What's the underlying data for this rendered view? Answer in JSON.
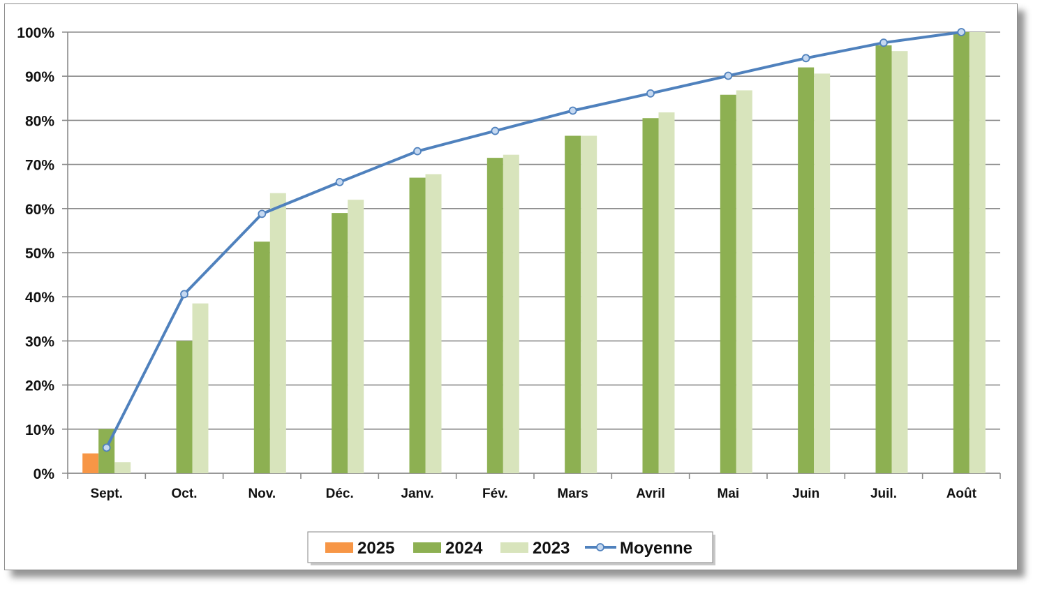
{
  "chart_data": {
    "type": "bar",
    "categories": [
      "Sept.",
      "Oct.",
      "Nov.",
      "Déc.",
      "Janv.",
      "Fév.",
      "Mars",
      "Avril",
      "Mai",
      "Juin",
      "Juil.",
      "Août"
    ],
    "series": [
      {
        "name": "2025",
        "kind": "bar",
        "color": "#f79646",
        "values": [
          4.5,
          null,
          null,
          null,
          null,
          null,
          null,
          null,
          null,
          null,
          null,
          null
        ]
      },
      {
        "name": "2024",
        "kind": "bar",
        "color": "#8db052",
        "values": [
          10,
          30,
          52.5,
          59,
          67,
          71.5,
          76.5,
          80.5,
          85.8,
          92,
          97,
          100
        ]
      },
      {
        "name": "2023",
        "kind": "bar",
        "color": "#d8e4bc",
        "values": [
          2.5,
          38.5,
          63.5,
          62,
          67.8,
          72.2,
          76.5,
          81.8,
          86.8,
          90.6,
          95.7,
          100
        ]
      },
      {
        "name": "Moyenne",
        "kind": "line",
        "color": "#4f81bd",
        "values": [
          5.8,
          40.6,
          58.8,
          66,
          73,
          77.6,
          82.2,
          86.1,
          90.1,
          94.1,
          97.6,
          100
        ]
      }
    ],
    "ylim": [
      0,
      100
    ],
    "y_ticks": [
      "0%",
      "10%",
      "20%",
      "30%",
      "40%",
      "50%",
      "60%",
      "70%",
      "80%",
      "90%",
      "100%"
    ],
    "title": "",
    "xlabel": "",
    "ylabel": "",
    "grid": "horizontal",
    "legend_position": "bottom"
  }
}
